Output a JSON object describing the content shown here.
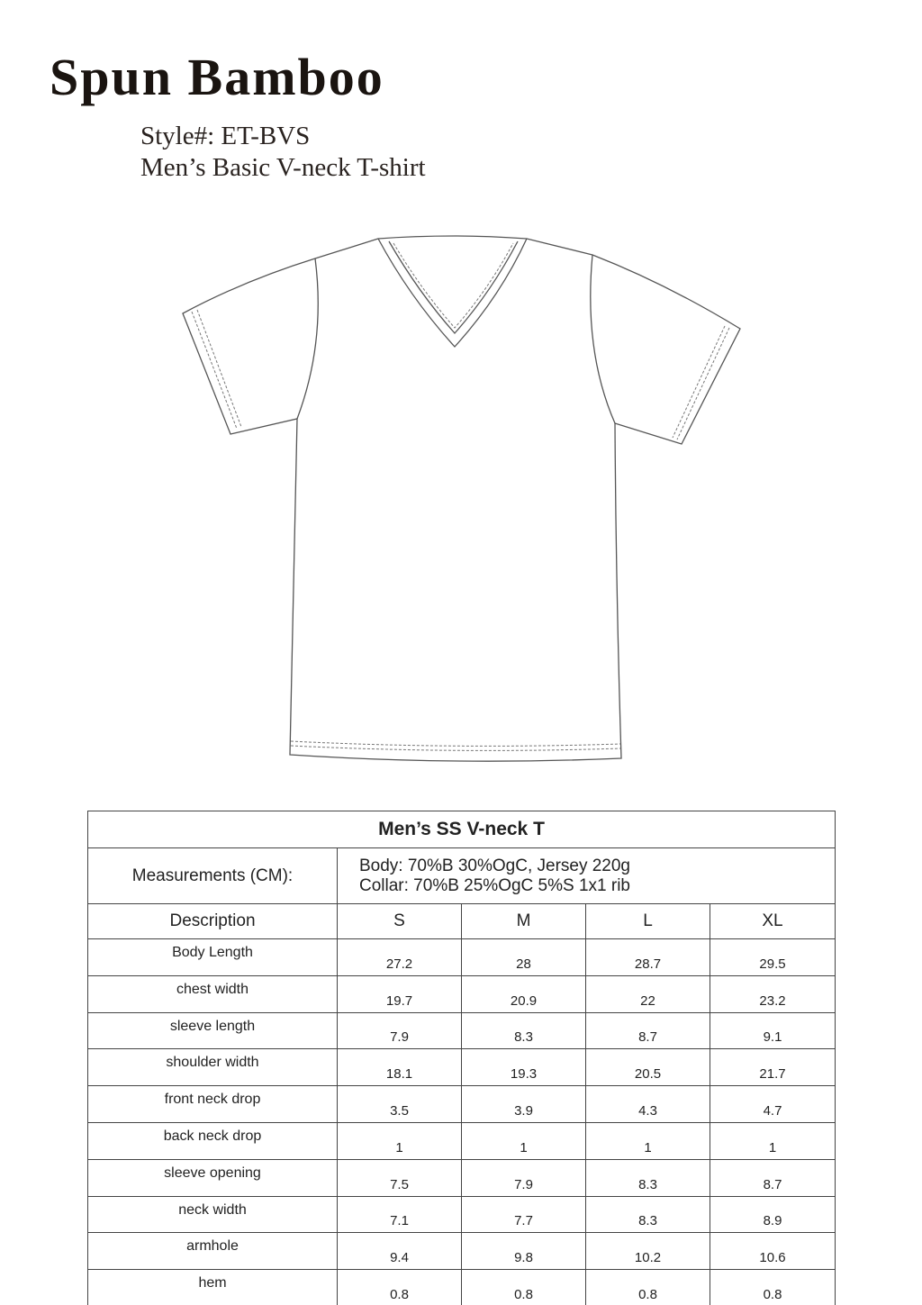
{
  "header": {
    "brand": "Spun Bamboo",
    "style": "Style#: ET-BVS",
    "product": "Men’s Basic V-neck T-shirt"
  },
  "illustration": {
    "icon": "v-neck-tshirt-flat-sketch"
  },
  "table": {
    "title": "Men’s SS V-neck T",
    "measurements_label": "Measurements (CM):",
    "body_material": "Body: 70%B 30%OgC, Jersey  220g",
    "collar_material": "Collar: 70%B 25%OgC 5%S  1x1 rib",
    "columns": [
      "Description",
      "S",
      "M",
      "L",
      "XL"
    ],
    "rows": [
      {
        "desc": "Body Length",
        "values": [
          "27.2",
          "28",
          "28.7",
          "29.5"
        ]
      },
      {
        "desc": "chest width",
        "values": [
          "19.7",
          "20.9",
          "22",
          "23.2"
        ]
      },
      {
        "desc": "sleeve length",
        "values": [
          "7.9",
          "8.3",
          "8.7",
          "9.1"
        ]
      },
      {
        "desc": "shoulder width",
        "values": [
          "18.1",
          "19.3",
          "20.5",
          "21.7"
        ]
      },
      {
        "desc": "front neck drop",
        "values": [
          "3.5",
          "3.9",
          "4.3",
          "4.7"
        ]
      },
      {
        "desc": "back neck drop",
        "values": [
          "1",
          "1",
          "1",
          "1"
        ]
      },
      {
        "desc": "sleeve opening",
        "values": [
          "7.5",
          "7.9",
          "8.3",
          "8.7"
        ]
      },
      {
        "desc": "neck width",
        "values": [
          "7.1",
          "7.7",
          "8.3",
          "8.9"
        ]
      },
      {
        "desc": "armhole",
        "values": [
          "9.4",
          "9.8",
          "10.2",
          "10.6"
        ]
      },
      {
        "desc": "hem",
        "values": [
          "0.8",
          "0.8",
          "0.8",
          "0.8"
        ]
      }
    ]
  }
}
